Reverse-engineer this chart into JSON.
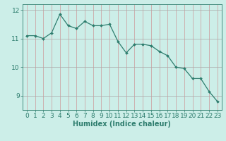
{
  "x": [
    0,
    1,
    2,
    3,
    4,
    5,
    6,
    7,
    8,
    9,
    10,
    11,
    12,
    13,
    14,
    15,
    16,
    17,
    18,
    19,
    20,
    21,
    22,
    23
  ],
  "y": [
    11.1,
    11.1,
    11.0,
    11.2,
    11.85,
    11.45,
    11.35,
    11.6,
    11.45,
    11.45,
    11.5,
    10.9,
    10.5,
    10.8,
    10.8,
    10.75,
    10.55,
    10.4,
    10.0,
    9.95,
    9.6,
    9.6,
    9.15,
    8.8
  ],
  "line_color": "#2e7d6e",
  "marker_color": "#2e7d6e",
  "bg_color": "#cceee8",
  "vgrid_color": "#cc9999",
  "hgrid_color": "#aaaaaa",
  "xlabel": "Humidex (Indice chaleur)",
  "xlim": [
    -0.5,
    23.5
  ],
  "ylim": [
    8.5,
    12.2
  ],
  "yticks": [
    9,
    10,
    11,
    12
  ],
  "xticks": [
    0,
    1,
    2,
    3,
    4,
    5,
    6,
    7,
    8,
    9,
    10,
    11,
    12,
    13,
    14,
    15,
    16,
    17,
    18,
    19,
    20,
    21,
    22,
    23
  ],
  "xlabel_fontsize": 7,
  "tick_fontsize": 6.5
}
